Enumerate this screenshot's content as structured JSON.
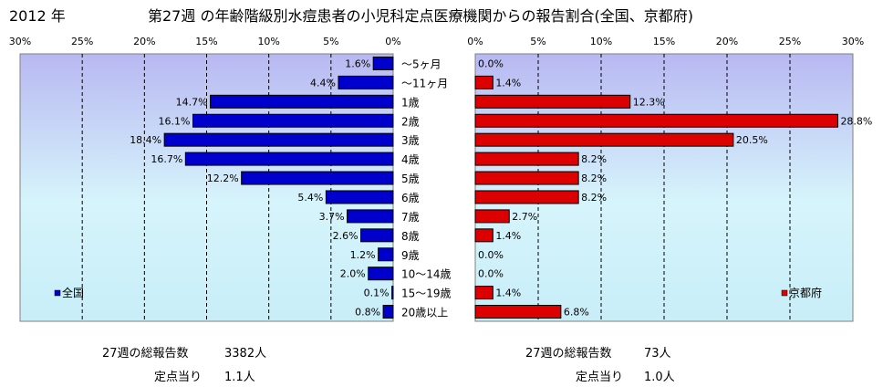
{
  "header": {
    "year": "2012 年",
    "title": "第27週 の年齢階級別水痘患者の小児科定点医療機関からの報告割合(全国、京都府)"
  },
  "footer": {
    "left_total_label": "27週の総報告数",
    "left_total_value": "3382人",
    "left_per_label": "定点当り",
    "left_per_value": "1.1人",
    "right_total_label": "27週の総報告数",
    "right_total_value": "73人",
    "right_per_label": "定点当り",
    "right_per_value": "1.0人"
  },
  "chart_data": [
    {
      "type": "bar",
      "orientation": "horizontal",
      "direction": "right-to-left",
      "categories": [
        "～5ヶ月",
        "～11ヶ月",
        "1歳",
        "2歳",
        "3歳",
        "4歳",
        "5歳",
        "6歳",
        "7歳",
        "8歳",
        "9歳",
        "10～14歳",
        "15～19歳",
        "20歳以上"
      ],
      "series": [
        {
          "name": "全国",
          "color": "#0000cc",
          "values": [
            1.6,
            4.4,
            14.7,
            16.1,
            18.4,
            16.7,
            12.2,
            5.4,
            3.7,
            2.6,
            1.2,
            2.0,
            0.1,
            0.8
          ],
          "labels": [
            "1.6%",
            "4.4%",
            "14.7%",
            "16.1%",
            "18.4%",
            "16.7%",
            "12.2%",
            "5.4%",
            "3.7%",
            "2.6%",
            "1.2%",
            "2.0%",
            "0.1%",
            "0.8%"
          ]
        }
      ],
      "xlim": [
        0,
        30
      ],
      "ticks": [
        "0%",
        "5%",
        "10%",
        "15%",
        "20%",
        "25%",
        "30%"
      ],
      "tick_values": [
        0,
        5,
        10,
        15,
        20,
        25,
        30
      ],
      "grid": true,
      "legend_position": "bottom-left"
    },
    {
      "type": "bar",
      "orientation": "horizontal",
      "direction": "left-to-right",
      "categories": [
        "～5ヶ月",
        "～11ヶ月",
        "1歳",
        "2歳",
        "3歳",
        "4歳",
        "5歳",
        "6歳",
        "7歳",
        "8歳",
        "9歳",
        "10～14歳",
        "15～19歳",
        "20歳以上"
      ],
      "series": [
        {
          "name": "京都府",
          "color": "#dd0000",
          "values": [
            0.0,
            1.4,
            12.3,
            28.8,
            20.5,
            8.2,
            8.2,
            8.2,
            2.7,
            1.4,
            0.0,
            0.0,
            1.4,
            6.8
          ],
          "labels": [
            "0.0%",
            "1.4%",
            "12.3%",
            "28.8%",
            "20.5%",
            "8.2%",
            "8.2%",
            "8.2%",
            "2.7%",
            "1.4%",
            "0.0%",
            "0.0%",
            "1.4%",
            "6.8%"
          ]
        }
      ],
      "xlim": [
        0,
        30
      ],
      "ticks": [
        "0%",
        "5%",
        "10%",
        "15%",
        "20%",
        "25%",
        "30%"
      ],
      "tick_values": [
        0,
        5,
        10,
        15,
        20,
        25,
        30
      ],
      "grid": true,
      "legend_position": "bottom-right"
    }
  ]
}
